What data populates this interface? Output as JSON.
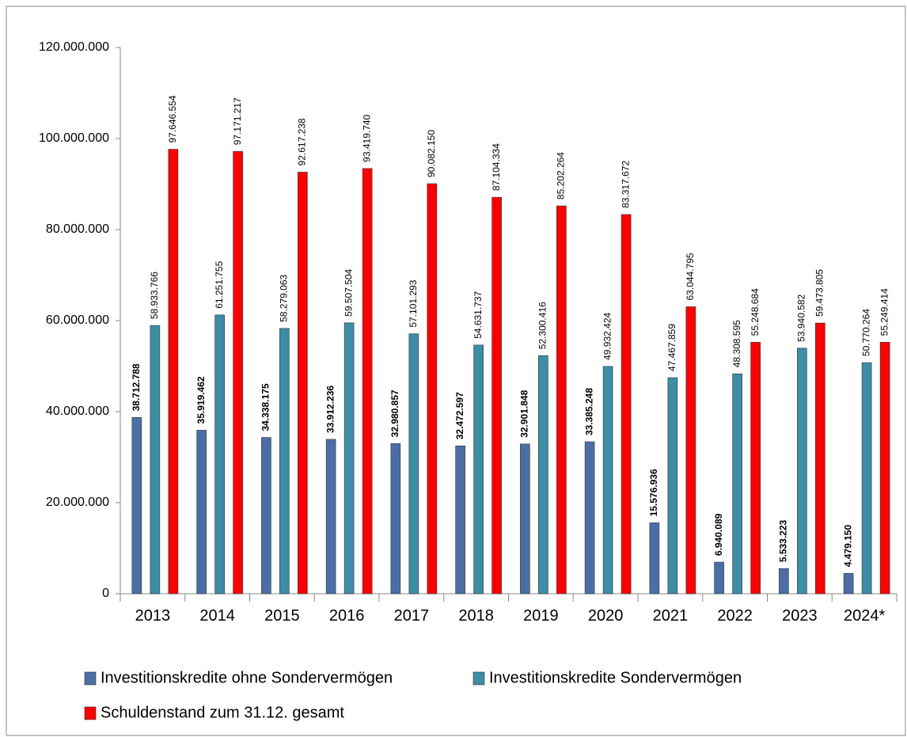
{
  "chart_data": {
    "type": "bar",
    "categories": [
      "2013",
      "2014",
      "2015",
      "2016",
      "2017",
      "2018",
      "2019",
      "2020",
      "2021",
      "2022",
      "2023",
      "2024*"
    ],
    "series": [
      {
        "name": "Investitionskredite ohne Sondervermögen",
        "color": "#4a6ea6",
        "values": [
          38712788,
          35919462,
          34338175,
          33912236,
          32980857,
          32472597,
          32901848,
          33385248,
          15576936,
          6940089,
          5533223,
          4479150
        ],
        "value_labels": [
          "38.712.788",
          "35.919.462",
          "34.338.175",
          "33.912.236",
          "32.980.857",
          "32.472.597",
          "32.901.848",
          "33.385.248",
          "15.576.936",
          "6.940.089",
          "5.533.223",
          "4.479.150"
        ]
      },
      {
        "name": "Investitionskredite Sondervermögen",
        "color": "#3b8ea5",
        "values": [
          58933766,
          61251755,
          58279063,
          59507504,
          57101293,
          54631737,
          52300416,
          49932424,
          47467859,
          48308595,
          53940582,
          50770264
        ],
        "value_labels": [
          "58.933.766",
          "61.251.755",
          "58.279.063",
          "59.507.504",
          "57.101.293",
          "54.631.737",
          "52.300.416",
          "49.932.424",
          "47.467.859",
          "48.308.595",
          "53.940.582",
          "50.770.264"
        ]
      },
      {
        "name": "Schuldenstand zum 31.12. gesamt",
        "color": "#ff0000",
        "values": [
          97646554,
          97171217,
          92617238,
          93419740,
          90082150,
          87104334,
          85202264,
          83317672,
          63044795,
          55248684,
          59473805,
          55249414
        ],
        "value_labels": [
          "97.646.554",
          "97.171.217",
          "92.617.238",
          "93.419.740",
          "90.082.150",
          "87.104.334",
          "85.202.264",
          "83.317.672",
          "63.044.795",
          "55.248.684",
          "59.473.805",
          "55.249.414"
        ]
      }
    ],
    "ylim": [
      0,
      120000000
    ],
    "yticks": [
      0,
      {
        "value": 20000000,
        "label": "20.000.000"
      },
      {
        "value": 40000000,
        "label": "40.000.000"
      },
      {
        "value": 60000000,
        "label": "60.000.000"
      },
      {
        "value": 80000000,
        "label": "80.000.000"
      },
      {
        "value": 100000000,
        "label": "100.000.000"
      },
      {
        "value": 120000000,
        "label": "120.000.000"
      }
    ]
  }
}
